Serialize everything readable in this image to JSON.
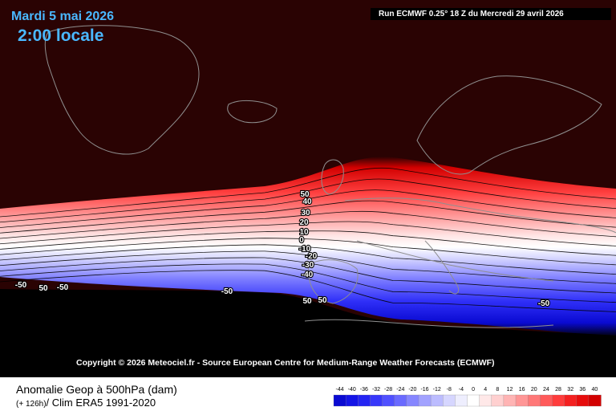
{
  "header": {
    "date": "Mardi 5 mai 2026",
    "time": "2:00 locale",
    "run": "Run ECMWF 0.25° 18 Z du Mercredi 29 avril 2026"
  },
  "copyright": "Copyright © 2026 Meteociel.fr - Source European Centre for Medium-Range Weather Forecasts (ECMWF)",
  "footer": {
    "title": "Anomalie Geop à 500hPa (dam)",
    "lead": "(+ 126h)",
    "clim": "/ Clim ERA5 1991-2020"
  },
  "legend": {
    "labels": [
      "-44",
      "-40",
      "-36",
      "-32",
      "-28",
      "-24",
      "-20",
      "-16",
      "-12",
      "-8",
      "-4",
      "0",
      "4",
      "8",
      "12",
      "16",
      "20",
      "24",
      "28",
      "32",
      "36",
      "40"
    ],
    "colors": [
      "#0a0ad2",
      "#1414e6",
      "#2424f2",
      "#3838fa",
      "#5050ff",
      "#6a6aff",
      "#8686ff",
      "#a2a2ff",
      "#bcbcff",
      "#d6d6ff",
      "#eeeefe",
      "#ffffff",
      "#ffe8e8",
      "#ffd0d0",
      "#ffb4b4",
      "#ff9696",
      "#ff7878",
      "#ff5a5a",
      "#ff3c3c",
      "#f42020",
      "#e60c0c",
      "#d20000"
    ]
  },
  "map": {
    "contour_labels": [
      "50",
      "40",
      "30",
      "20",
      "10",
      "0",
      "-10",
      "-20",
      "-30",
      "-40"
    ],
    "south_labels": [
      "-50",
      "50",
      "-50",
      "-50",
      "-50"
    ],
    "bottom_labels": [
      "50",
      "50"
    ],
    "colors": {
      "positive_extreme": "#2a0303",
      "negative_extreme": "#000000",
      "coast": "#8f8f8f"
    }
  }
}
